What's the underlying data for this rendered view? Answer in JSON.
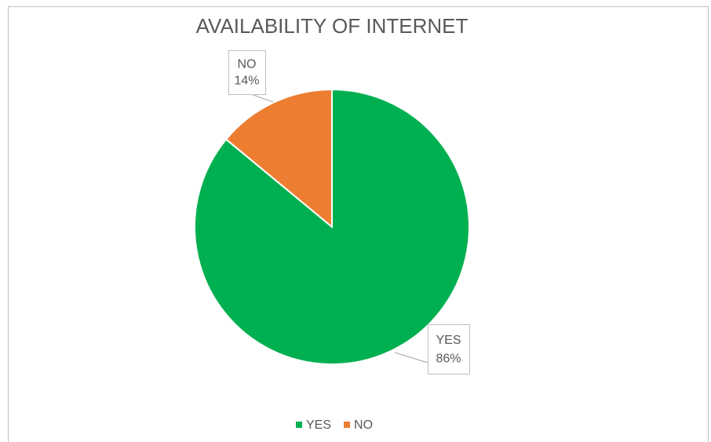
{
  "chart_data": {
    "type": "pie",
    "title": "AVAILABILITY OF INTERNET",
    "categories": [
      "YES",
      "NO"
    ],
    "values": [
      86,
      14
    ],
    "value_labels": [
      "86%",
      "14%"
    ],
    "colors": [
      "#00b050",
      "#ed7d31"
    ],
    "legend": "bottom"
  }
}
